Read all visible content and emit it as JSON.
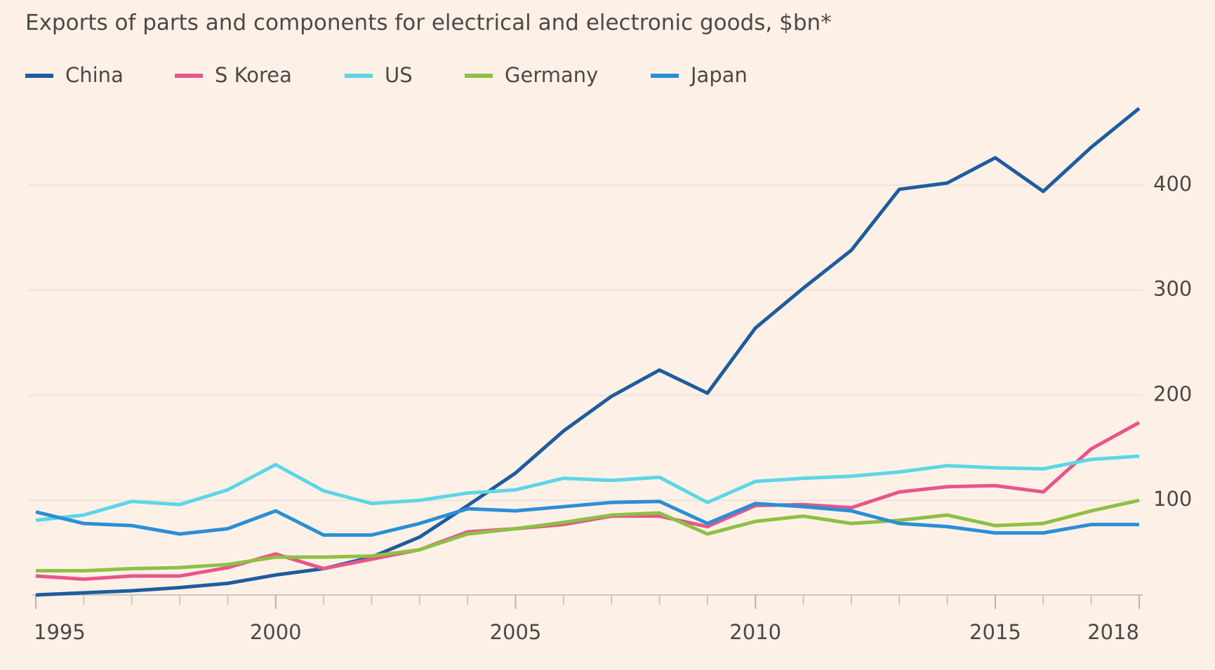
{
  "chart_data": {
    "type": "line",
    "title": "Exports of parts and components for electrical and electronic goods, $bn*",
    "x": [
      1995,
      1996,
      1997,
      1998,
      1999,
      2000,
      2001,
      2002,
      2003,
      2004,
      2005,
      2006,
      2007,
      2008,
      2009,
      2010,
      2011,
      2012,
      2013,
      2014,
      2015,
      2016,
      2017,
      2018
    ],
    "series": [
      {
        "name": "China",
        "color": "#1f5c9e",
        "values": [
          10,
          12,
          14,
          17,
          21,
          29,
          35,
          46,
          65,
          95,
          126,
          166,
          199,
          224,
          202,
          264,
          302,
          338,
          396,
          402,
          426,
          394,
          436,
          473
        ]
      },
      {
        "name": "S Korea",
        "color": "#e8558a",
        "values": [
          28,
          25,
          28,
          28,
          36,
          49,
          35,
          44,
          53,
          70,
          73,
          77,
          85,
          85,
          75,
          95,
          96,
          93,
          108,
          113,
          114,
          108,
          149,
          174
        ]
      },
      {
        "name": "US",
        "color": "#5dd6e6",
        "values": [
          81,
          86,
          99,
          96,
          110,
          134,
          109,
          97,
          100,
          107,
          110,
          121,
          119,
          122,
          98,
          118,
          121,
          123,
          127,
          133,
          131,
          130,
          139,
          142
        ]
      },
      {
        "name": "Germany",
        "color": "#8ec045",
        "values": [
          33,
          33,
          35,
          36,
          39,
          46,
          46,
          47,
          53,
          68,
          73,
          79,
          86,
          88,
          68,
          80,
          85,
          78,
          81,
          86,
          76,
          78,
          90,
          100
        ]
      },
      {
        "name": "Japan",
        "color": "#2a8fd6",
        "values": [
          89,
          78,
          76,
          68,
          73,
          90,
          67,
          67,
          78,
          92,
          90,
          94,
          98,
          99,
          78,
          97,
          94,
          90,
          78,
          75,
          69,
          69,
          77,
          77
        ]
      }
    ],
    "xlim": [
      1995,
      2018
    ],
    "xticks": [
      1995,
      2000,
      2005,
      2010,
      2015,
      2018
    ],
    "ylim": [
      10,
      480
    ],
    "yticks": [
      100,
      200,
      300,
      400
    ],
    "grid": true
  }
}
